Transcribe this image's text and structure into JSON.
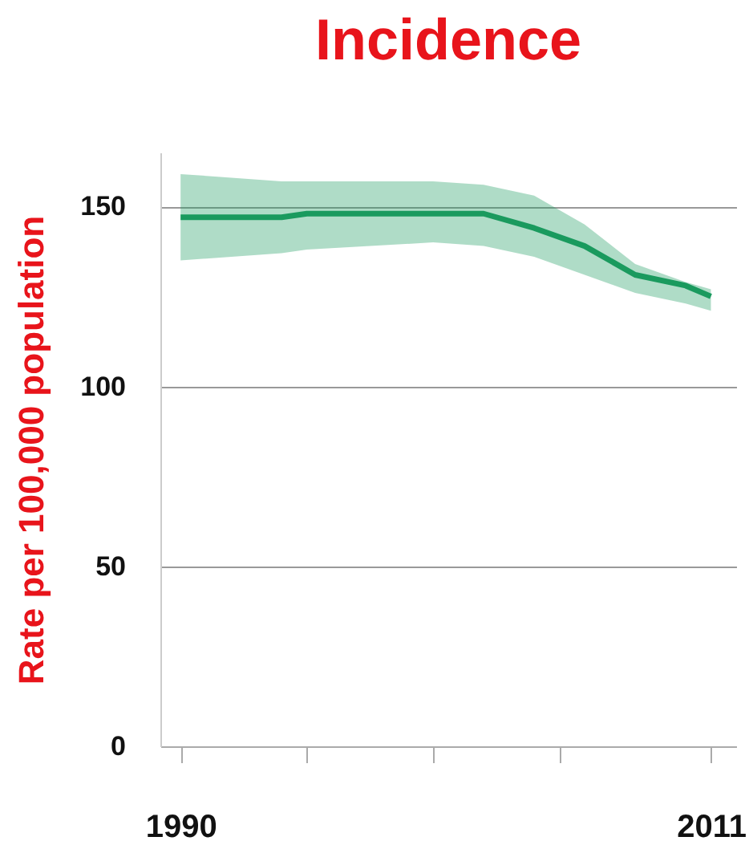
{
  "chart_data": {
    "type": "line",
    "title": "Incidence",
    "ylabel": "Rate per 100,000 population",
    "x": [
      1990,
      1994,
      1995,
      2000,
      2002,
      2004,
      2006,
      2008,
      2010,
      2011
    ],
    "series": [
      {
        "color": "#1a9a5e",
        "values": [
          147,
          147,
          148,
          148,
          148,
          144,
          139,
          131,
          128,
          125
        ],
        "lower": [
          135,
          137,
          138,
          140,
          139,
          136,
          131,
          126,
          123,
          121
        ],
        "upper": [
          159,
          157,
          157,
          157,
          156,
          153,
          145,
          134,
          129,
          127
        ]
      }
    ],
    "xlim": [
      1989.2,
      2012
    ],
    "xticks": [
      1990,
      {
        "value": 1995,
        "label": null
      },
      {
        "value": 2000,
        "label": null
      },
      {
        "value": 2005,
        "label": null
      },
      2011
    ],
    "ylim": [
      0,
      165
    ],
    "yticks": [
      0,
      50,
      100,
      150
    ],
    "grid": "y"
  }
}
